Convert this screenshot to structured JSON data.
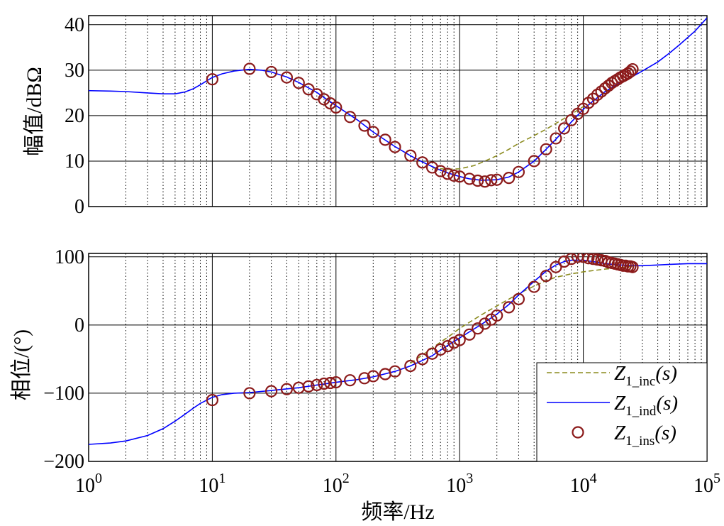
{
  "chart_data": [
    {
      "type": "line",
      "panel": "magnitude",
      "title": "",
      "xlabel": "",
      "ylabel": "幅值/dBΩ",
      "xscale": "log",
      "xlim": [
        1,
        100000
      ],
      "ylim": [
        0,
        42
      ],
      "y_ticks": [
        0,
        10,
        20,
        30,
        40
      ],
      "grid": true,
      "series": [
        {
          "name": "Z1_inc(s)",
          "style": "dashed",
          "color": "#8b8b1e",
          "x": [
            600,
            800,
            1000,
            1300,
            1600,
            2000,
            2500,
            3000,
            4000,
            5000,
            6000,
            8000,
            10000
          ],
          "y": [
            8.5,
            8.2,
            8.3,
            9.0,
            10.0,
            11.2,
            12.6,
            13.9,
            15.6,
            17.0,
            18.3,
            20.3,
            22.0
          ]
        },
        {
          "name": "Z1_ind(s)",
          "style": "solid",
          "color": "#0000ff",
          "x": [
            1,
            1.5,
            2,
            3,
            4,
            5,
            6,
            7,
            8,
            10,
            12,
            15,
            20,
            25,
            30,
            40,
            50,
            60,
            70,
            80,
            100,
            150,
            200,
            300,
            400,
            500,
            600,
            700,
            800,
            1000,
            1200,
            1500,
            2000,
            2500,
            3000,
            4000,
            5000,
            6000,
            7000,
            8000,
            10000,
            12000,
            15000,
            20000,
            25000,
            30000,
            40000,
            50000,
            60000,
            80000,
            100000
          ],
          "y": [
            25.5,
            25.4,
            25.3,
            25.0,
            24.8,
            24.8,
            25.2,
            25.9,
            26.8,
            28.4,
            29.2,
            29.8,
            30.2,
            30.0,
            29.6,
            28.5,
            27.3,
            26.1,
            25.1,
            24.0,
            22.2,
            19.0,
            16.4,
            13.2,
            11.2,
            9.8,
            8.8,
            8.0,
            7.4,
            6.6,
            6.1,
            5.8,
            5.9,
            6.5,
            7.6,
            10.0,
            12.6,
            14.8,
            16.8,
            18.6,
            21.4,
            23.2,
            25.3,
            27.3,
            28.6,
            29.8,
            31.8,
            33.8,
            35.6,
            38.6,
            41.5
          ]
        },
        {
          "name": "Z1_ins(s)",
          "style": "markers",
          "color": "#8b1a1a",
          "x": [
            10,
            20,
            30,
            40,
            50,
            60,
            70,
            80,
            90,
            100,
            130,
            170,
            200,
            250,
            300,
            400,
            500,
            600,
            700,
            800,
            900,
            1000,
            1200,
            1400,
            1600,
            1800,
            2000,
            2500,
            3000,
            4000,
            5000,
            6000,
            7000,
            8000,
            9000,
            10000,
            11000,
            12000,
            13000,
            14000,
            15000,
            16000,
            17000,
            18000,
            19000,
            20000,
            21000,
            22000,
            23000,
            24000,
            25000
          ],
          "y": [
            28.0,
            30.3,
            29.6,
            28.4,
            27.2,
            25.8,
            24.7,
            23.6,
            22.7,
            21.8,
            19.7,
            17.8,
            16.4,
            14.7,
            13.1,
            11.2,
            9.7,
            8.6,
            7.8,
            7.2,
            6.8,
            6.6,
            6.1,
            5.7,
            5.5,
            5.8,
            5.9,
            6.3,
            7.6,
            10.0,
            12.6,
            15.0,
            17.2,
            19.0,
            20.4,
            21.5,
            22.8,
            23.7,
            24.6,
            25.3,
            26.0,
            26.6,
            27.2,
            27.6,
            28.0,
            28.4,
            28.7,
            29.0,
            29.3,
            29.7,
            30.2
          ]
        }
      ]
    },
    {
      "type": "line",
      "panel": "phase",
      "title": "",
      "xlabel": "频率/Hz",
      "ylabel": "相位/(°)",
      "xscale": "log",
      "xlim": [
        1,
        100000
      ],
      "ylim": [
        -200,
        105
      ],
      "y_ticks": [
        -200,
        -100,
        0,
        100
      ],
      "grid": true,
      "series": [
        {
          "name": "Z1_inc(s)",
          "style": "dashed",
          "color": "#8b8b1e",
          "x": [
            400,
            500,
            600,
            700,
            800,
            1000,
            1200,
            1500,
            2000,
            2500,
            3000,
            4000,
            5000,
            6000,
            8000,
            10000,
            15000,
            20000,
            25000
          ],
          "y": [
            -56,
            -44,
            -34,
            -25,
            -18,
            -5,
            4,
            15,
            28,
            38,
            46,
            57,
            65,
            70,
            75,
            78,
            82,
            84,
            86
          ]
        },
        {
          "name": "Z1_ind(s)",
          "style": "solid",
          "color": "#0000ff",
          "x": [
            1,
            1.5,
            2,
            3,
            4,
            5,
            6,
            7,
            8,
            10,
            12,
            15,
            20,
            30,
            50,
            70,
            100,
            150,
            200,
            300,
            400,
            500,
            600,
            800,
            1000,
            1200,
            1500,
            2000,
            2500,
            3000,
            4000,
            5000,
            6000,
            7000,
            8000,
            10000,
            12000,
            15000,
            20000,
            25000,
            30000,
            40000,
            50000,
            70000,
            100000
          ],
          "y": [
            -175,
            -173,
            -170,
            -162,
            -152,
            -141,
            -131,
            -122,
            -115,
            -106,
            -102,
            -100,
            -99,
            -96,
            -92,
            -88,
            -84,
            -80,
            -76,
            -68,
            -60,
            -52,
            -45,
            -30,
            -19,
            -10,
            1,
            16,
            30,
            44,
            64,
            79,
            88,
            93,
            95,
            95,
            93,
            90,
            88,
            87,
            87,
            88,
            89,
            90,
            90
          ]
        },
        {
          "name": "Z1_ins(s)",
          "style": "markers",
          "color": "#8b1a1a",
          "x": [
            10,
            20,
            30,
            40,
            50,
            60,
            70,
            80,
            90,
            100,
            130,
            170,
            200,
            250,
            300,
            400,
            500,
            600,
            700,
            800,
            900,
            1000,
            1200,
            1400,
            1600,
            1800,
            2000,
            2500,
            3000,
            4000,
            5000,
            6000,
            7000,
            8000,
            9000,
            10000,
            11000,
            12000,
            13000,
            14000,
            15000,
            16000,
            17000,
            18000,
            19000,
            20000,
            21000,
            22000,
            23000,
            24000,
            25000
          ],
          "y": [
            -110,
            -100,
            -97,
            -94,
            -92,
            -90,
            -88,
            -86,
            -85,
            -84,
            -81,
            -78,
            -75,
            -72,
            -68,
            -60,
            -50,
            -42,
            -36,
            -31,
            -26,
            -22,
            -14,
            -5,
            2,
            8,
            14,
            26,
            38,
            56,
            72,
            85,
            93,
            97,
            100,
            100,
            98,
            97,
            96,
            95,
            94,
            92,
            91,
            90,
            89,
            88,
            87,
            87,
            86,
            86,
            85
          ]
        }
      ]
    }
  ],
  "x_tick_labels": [
    {
      "base": "10",
      "exp": "0"
    },
    {
      "base": "10",
      "exp": "1"
    },
    {
      "base": "10",
      "exp": "2"
    },
    {
      "base": "10",
      "exp": "3"
    },
    {
      "base": "10",
      "exp": "4"
    },
    {
      "base": "10",
      "exp": "5"
    }
  ],
  "legend": [
    {
      "main": "Z",
      "sub": "1_inc",
      "tail": "(s)"
    },
    {
      "main": "Z",
      "sub": "1_ind",
      "tail": "(s)"
    },
    {
      "main": "Z",
      "sub": "1_ins",
      "tail": "(s)"
    }
  ]
}
